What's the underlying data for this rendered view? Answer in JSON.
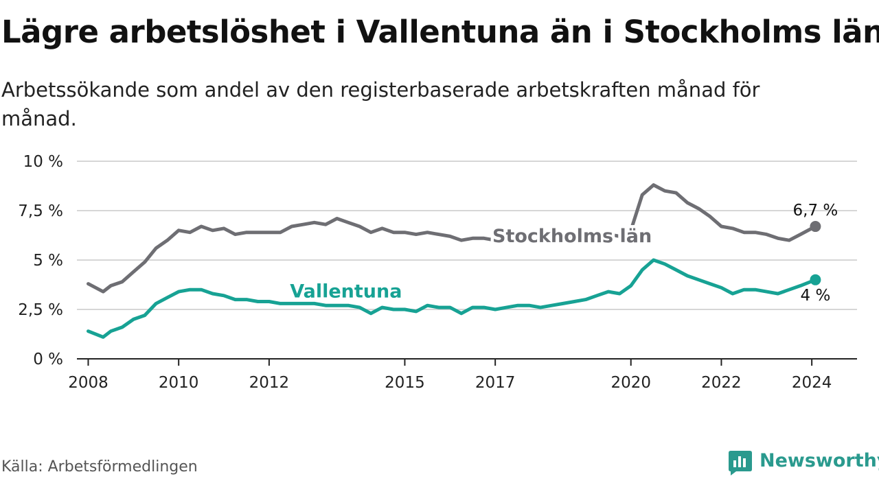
{
  "title": "Lägre arbetslöshet i Vallentuna än i Stockholms län",
  "subtitle": "Arbetssökande som andel av den registerbaserade arbetskraften månad för månad.",
  "source": "Källa: Arbetsförmedlingen",
  "brand": {
    "name": "Newsworthy",
    "color": "#2a9a8e",
    "icon": "newsworthy-logo-icon"
  },
  "chart_data": {
    "type": "line",
    "title": "Lägre arbetslöshet i Vallentuna än i Stockholms län",
    "xlabel": "",
    "ylabel": "",
    "xlim": [
      2007.75,
      2025
    ],
    "ylim": [
      0,
      10
    ],
    "grid": true,
    "y_ticks": [
      {
        "value": 0,
        "label": "0 %"
      },
      {
        "value": 2.5,
        "label": "2,5 %"
      },
      {
        "value": 5,
        "label": "5 %"
      },
      {
        "value": 7.5,
        "label": "7,5 %"
      },
      {
        "value": 10,
        "label": "10 %"
      }
    ],
    "x_ticks": [
      {
        "value": 2008,
        "label": "2008"
      },
      {
        "value": 2010,
        "label": "2010"
      },
      {
        "value": 2012,
        "label": "2012"
      },
      {
        "value": 2015,
        "label": "2015"
      },
      {
        "value": 2017,
        "label": "2017"
      },
      {
        "value": 2020,
        "label": "2020"
      },
      {
        "value": 2022,
        "label": "2022"
      },
      {
        "value": 2024,
        "label": "2024"
      }
    ],
    "series": [
      {
        "name": "Stockholms län",
        "color": "#6e6e73",
        "end_label": "6,7 %",
        "x": [
          2008.0,
          2008.33,
          2008.5,
          2008.75,
          2009.0,
          2009.25,
          2009.5,
          2009.75,
          2010.0,
          2010.25,
          2010.5,
          2010.75,
          2011.0,
          2011.25,
          2011.5,
          2011.75,
          2012.0,
          2012.25,
          2012.5,
          2012.75,
          2013.0,
          2013.25,
          2013.5,
          2013.75,
          2014.0,
          2014.25,
          2014.5,
          2014.75,
          2015.0,
          2015.25,
          2015.5,
          2015.75,
          2016.0,
          2016.25,
          2016.5,
          2016.75,
          2017.0,
          2017.25,
          2017.5,
          2017.75,
          2018.0,
          2018.25,
          2018.5,
          2018.75,
          2019.0,
          2019.25,
          2019.5,
          2019.75,
          2020.0,
          2020.25,
          2020.5,
          2020.75,
          2021.0,
          2021.25,
          2021.5,
          2021.75,
          2022.0,
          2022.25,
          2022.5,
          2022.75,
          2023.0,
          2023.25,
          2023.5,
          2023.75,
          2024.08
        ],
        "values": [
          3.8,
          3.4,
          3.7,
          3.9,
          4.4,
          4.9,
          5.6,
          6.0,
          6.5,
          6.4,
          6.7,
          6.5,
          6.6,
          6.3,
          6.4,
          6.4,
          6.4,
          6.4,
          6.7,
          6.8,
          6.9,
          6.8,
          7.1,
          6.9,
          6.7,
          6.4,
          6.6,
          6.4,
          6.4,
          6.3,
          6.4,
          6.3,
          6.2,
          6.0,
          6.1,
          6.1,
          6.0,
          6.1,
          6.2,
          6.1,
          6.1,
          6.0,
          6.1,
          6.2,
          6.1,
          6.2,
          6.3,
          6.2,
          6.5,
          8.3,
          8.8,
          8.5,
          8.4,
          7.9,
          7.6,
          7.2,
          6.7,
          6.6,
          6.4,
          6.4,
          6.3,
          6.1,
          6.0,
          6.3,
          6.7
        ]
      },
      {
        "name": "Vallentuna",
        "color": "#17a294",
        "end_label": "4 %",
        "x": [
          2008.0,
          2008.33,
          2008.5,
          2008.75,
          2009.0,
          2009.25,
          2009.5,
          2009.75,
          2010.0,
          2010.25,
          2010.5,
          2010.75,
          2011.0,
          2011.25,
          2011.5,
          2011.75,
          2012.0,
          2012.25,
          2012.5,
          2012.75,
          2013.0,
          2013.25,
          2013.5,
          2013.75,
          2014.0,
          2014.25,
          2014.5,
          2014.75,
          2015.0,
          2015.25,
          2015.5,
          2015.75,
          2016.0,
          2016.25,
          2016.5,
          2016.75,
          2017.0,
          2017.25,
          2017.5,
          2017.75,
          2018.0,
          2018.25,
          2018.5,
          2018.75,
          2019.0,
          2019.25,
          2019.5,
          2019.75,
          2020.0,
          2020.25,
          2020.5,
          2020.75,
          2021.0,
          2021.25,
          2021.5,
          2021.75,
          2022.0,
          2022.25,
          2022.5,
          2022.75,
          2023.0,
          2023.25,
          2023.5,
          2023.75,
          2024.08
        ],
        "values": [
          1.4,
          1.1,
          1.4,
          1.6,
          2.0,
          2.2,
          2.8,
          3.1,
          3.4,
          3.5,
          3.5,
          3.3,
          3.2,
          3.0,
          3.0,
          2.9,
          2.9,
          2.8,
          2.8,
          2.8,
          2.8,
          2.7,
          2.7,
          2.7,
          2.6,
          2.3,
          2.6,
          2.5,
          2.5,
          2.4,
          2.7,
          2.6,
          2.6,
          2.3,
          2.6,
          2.6,
          2.5,
          2.6,
          2.7,
          2.7,
          2.6,
          2.7,
          2.8,
          2.9,
          3.0,
          3.2,
          3.4,
          3.3,
          3.7,
          4.5,
          5.0,
          4.8,
          4.5,
          4.2,
          4.0,
          3.8,
          3.6,
          3.3,
          3.5,
          3.5,
          3.4,
          3.3,
          3.5,
          3.7,
          4.0
        ]
      }
    ],
    "annotations": [
      {
        "text": "Stockholms län",
        "series": "Stockholms län",
        "x": 2018.7,
        "y": 5.9
      },
      {
        "text": "Vallentuna",
        "series": "Vallentuna",
        "x": 2013.7,
        "y": 3.1
      }
    ]
  }
}
